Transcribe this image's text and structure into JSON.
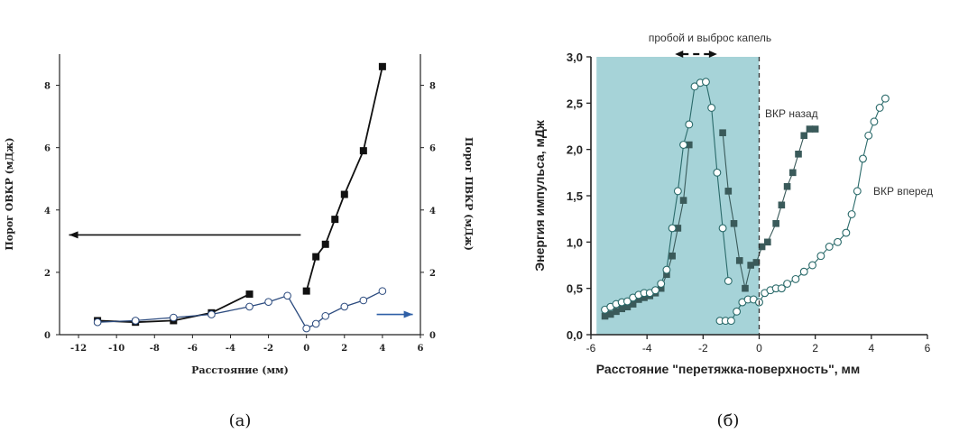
{
  "chart_data": [
    {
      "panel_label": "(a)",
      "type": "line",
      "xlabel": "Расстояние (мм)",
      "ylabel": "Порог ОВКР (мДж)",
      "ylabel_right": "Порог ПВКР (мДж)",
      "xlim": [
        -13,
        6
      ],
      "ylim": [
        0,
        9
      ],
      "xticks": [
        -12,
        -10,
        -8,
        -6,
        -4,
        -2,
        0,
        2,
        4,
        6
      ],
      "yticks": [
        0,
        2,
        4,
        6,
        8
      ],
      "grid": false,
      "series": [
        {
          "marker": "filled-square",
          "color": "#111111",
          "axis": "left",
          "segments": [
            [
              [
                -11,
                0.45
              ],
              [
                -9,
                0.4
              ],
              [
                -7,
                0.45
              ],
              [
                -5,
                0.7
              ],
              [
                -3,
                1.3
              ]
            ],
            [
              [
                0,
                1.4
              ],
              [
                0.5,
                2.5
              ],
              [
                1,
                2.9
              ],
              [
                1.5,
                3.7
              ],
              [
                2,
                4.5
              ],
              [
                3,
                5.9
              ],
              [
                4,
                8.6
              ]
            ]
          ]
        },
        {
          "marker": "open-circle",
          "color": "#2b4a7e",
          "axis": "right",
          "segments": [
            [
              [
                -11,
                0.4
              ],
              [
                -9,
                0.45
              ],
              [
                -7,
                0.55
              ],
              [
                -5,
                0.65
              ],
              [
                -3,
                0.9
              ],
              [
                -2,
                1.05
              ],
              [
                -1,
                1.25
              ],
              [
                0,
                0.2
              ],
              [
                0.5,
                0.35
              ],
              [
                1,
                0.6
              ],
              [
                2,
                0.9
              ],
              [
                3,
                1.1
              ],
              [
                4,
                1.4
              ]
            ]
          ]
        }
      ],
      "arrows": [
        {
          "direction": "left",
          "color": "#111111",
          "from": [
            -0.3,
            3.2
          ],
          "to": [
            -12.5,
            3.2
          ]
        },
        {
          "direction": "right",
          "color": "#2e5fa6",
          "from": [
            3.7,
            0.65
          ],
          "to": [
            5.6,
            0.65
          ]
        }
      ]
    },
    {
      "panel_label": "(б)",
      "type": "line",
      "xlabel": "Расстояние \"перетяжка-поверхность\", мм",
      "ylabel": "Энергия импульса, мДж",
      "xlim": [
        -6,
        6
      ],
      "ylim": [
        0,
        3
      ],
      "xticks": [
        -6,
        -4,
        -2,
        0,
        2,
        4,
        6
      ],
      "xtick_labels": [
        "-6",
        "-4",
        "-2",
        "0",
        "2",
        "4",
        "6"
      ],
      "yticks": [
        0,
        0.5,
        1.0,
        1.5,
        2.0,
        2.5,
        3.0
      ],
      "ytick_labels": [
        "0,0",
        "0,5",
        "1,0",
        "1,5",
        "2,0",
        "2,5",
        "3,0"
      ],
      "grid": false,
      "shaded_region": {
        "x": [
          -5.8,
          0
        ],
        "color": "#a6d3d8"
      },
      "vline": 0,
      "annotation": "пробой и выброс капель",
      "annotation_arrow_x": [
        -3.0,
        -1.5
      ],
      "series": [
        {
          "name": "ВКР назад",
          "marker": "filled-square",
          "color": "#3a5a5a",
          "segments": [
            [
              [
                -5.5,
                0.2
              ],
              [
                -5.3,
                0.22
              ],
              [
                -5.1,
                0.25
              ],
              [
                -4.9,
                0.28
              ],
              [
                -4.7,
                0.3
              ],
              [
                -4.5,
                0.33
              ],
              [
                -4.3,
                0.38
              ],
              [
                -4.1,
                0.4
              ],
              [
                -3.9,
                0.42
              ],
              [
                -3.7,
                0.45
              ],
              [
                -3.5,
                0.5
              ],
              [
                -3.3,
                0.65
              ],
              [
                -3.1,
                0.85
              ],
              [
                -2.9,
                1.15
              ],
              [
                -2.7,
                1.45
              ],
              [
                -2.5,
                2.05
              ]
            ],
            [
              [
                -1.3,
                2.18
              ],
              [
                -1.1,
                1.55
              ],
              [
                -0.9,
                1.2
              ],
              [
                -0.7,
                0.8
              ],
              [
                -0.5,
                0.5
              ],
              [
                -0.3,
                0.75
              ],
              [
                -0.1,
                0.78
              ],
              [
                0.1,
                0.95
              ],
              [
                0.3,
                1.0
              ],
              [
                0.6,
                1.2
              ],
              [
                0.8,
                1.4
              ],
              [
                1.0,
                1.6
              ],
              [
                1.2,
                1.75
              ],
              [
                1.4,
                1.95
              ],
              [
                1.6,
                2.15
              ],
              [
                1.8,
                2.22
              ],
              [
                2.0,
                2.22
              ]
            ]
          ]
        },
        {
          "name": "ВКР вперед",
          "marker": "open-circle",
          "color": "#2a6a6a",
          "segments": [
            [
              [
                -5.5,
                0.27
              ],
              [
                -5.3,
                0.3
              ],
              [
                -5.1,
                0.33
              ],
              [
                -4.9,
                0.35
              ],
              [
                -4.7,
                0.36
              ],
              [
                -4.5,
                0.4
              ],
              [
                -4.3,
                0.43
              ],
              [
                -4.1,
                0.45
              ],
              [
                -3.9,
                0.45
              ],
              [
                -3.7,
                0.48
              ],
              [
                -3.5,
                0.55
              ],
              [
                -3.3,
                0.7
              ],
              [
                -3.1,
                1.15
              ],
              [
                -2.9,
                1.55
              ],
              [
                -2.7,
                2.05
              ],
              [
                -2.5,
                2.27
              ],
              [
                -2.3,
                2.68
              ],
              [
                -2.1,
                2.72
              ],
              [
                -1.9,
                2.73
              ],
              [
                -1.7,
                2.45
              ],
              [
                -1.5,
                1.75
              ],
              [
                -1.3,
                1.15
              ],
              [
                -1.1,
                0.58
              ]
            ],
            [
              [
                -1.4,
                0.15
              ],
              [
                -1.2,
                0.15
              ],
              [
                -1.0,
                0.15
              ],
              [
                -0.8,
                0.25
              ],
              [
                -0.6,
                0.35
              ],
              [
                -0.4,
                0.38
              ],
              [
                -0.2,
                0.38
              ],
              [
                0,
                0.35
              ],
              [
                0.2,
                0.45
              ],
              [
                0.4,
                0.48
              ],
              [
                0.6,
                0.5
              ],
              [
                0.8,
                0.5
              ],
              [
                1.0,
                0.55
              ],
              [
                1.3,
                0.6
              ],
              [
                1.6,
                0.68
              ],
              [
                1.9,
                0.75
              ],
              [
                2.2,
                0.85
              ],
              [
                2.5,
                0.95
              ],
              [
                2.8,
                1.0
              ],
              [
                3.1,
                1.1
              ],
              [
                3.3,
                1.3
              ],
              [
                3.5,
                1.55
              ],
              [
                3.7,
                1.9
              ],
              [
                3.9,
                2.15
              ],
              [
                4.1,
                2.3
              ],
              [
                4.3,
                2.45
              ],
              [
                4.5,
                2.55
              ]
            ]
          ]
        }
      ]
    }
  ]
}
